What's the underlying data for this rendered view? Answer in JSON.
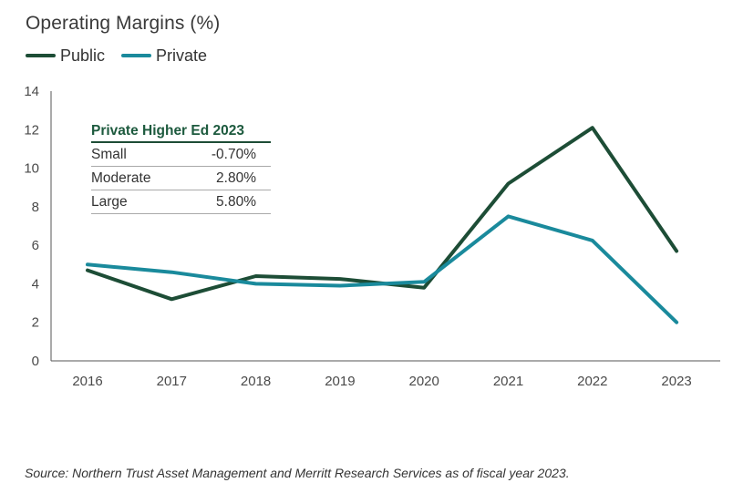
{
  "chart_data": {
    "type": "line",
    "title": "Operating Margins (%)",
    "xlabel": "",
    "ylabel": "",
    "categories": [
      "2016",
      "2017",
      "2018",
      "2019",
      "2020",
      "2021",
      "2022",
      "2023"
    ],
    "ylim": [
      0,
      14
    ],
    "yticks": [
      0,
      2,
      4,
      6,
      8,
      10,
      12,
      14
    ],
    "grid": false,
    "legend_position": "top-left",
    "series": [
      {
        "name": "Public",
        "color": "#1d4d36",
        "values": [
          4.7,
          3.2,
          4.4,
          4.25,
          3.8,
          9.2,
          12.1,
          5.7
        ]
      },
      {
        "name": "Private",
        "color": "#1a8a9c",
        "values": [
          5.0,
          4.6,
          4.0,
          3.9,
          4.1,
          7.5,
          6.25,
          2.0
        ]
      }
    ],
    "inset_table": {
      "title": "Private Higher Ed 2023",
      "rows": [
        {
          "label": "Small",
          "value": "-0.70%"
        },
        {
          "label": "Moderate",
          "value": "2.80%"
        },
        {
          "label": "Large",
          "value": "5.80%"
        }
      ]
    },
    "source": "Source: Northern Trust Asset Management and Merritt Research Services as of fiscal year 2023."
  }
}
